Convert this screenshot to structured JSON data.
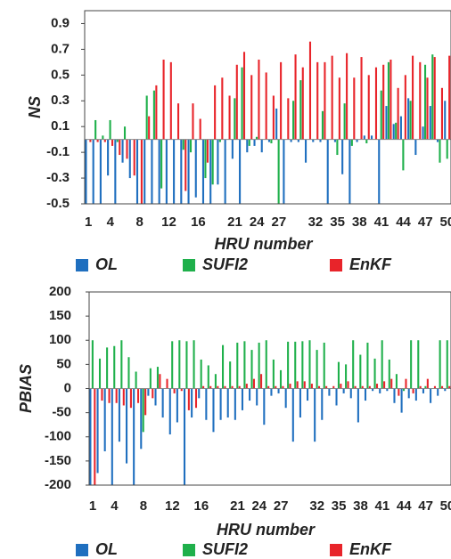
{
  "chart_data": [
    {
      "type": "bar",
      "y_label": "NS",
      "x_label": "HRU number",
      "categories": [
        "1",
        null,
        null,
        "4",
        null,
        null,
        null,
        "8",
        null,
        null,
        null,
        "12",
        null,
        null,
        null,
        "16",
        null,
        null,
        null,
        null,
        "21",
        null,
        null,
        "24",
        null,
        null,
        "27",
        null,
        null,
        null,
        null,
        "32",
        null,
        null,
        "35",
        null,
        null,
        "38",
        null,
        null,
        "41",
        null,
        null,
        "44",
        null,
        null,
        "47",
        null,
        null,
        "50"
      ],
      "ylim": [
        -0.5,
        1.0
      ],
      "yticks": [
        -0.5,
        -0.3,
        -0.1,
        0.1,
        0.3,
        0.5,
        0.7,
        0.9
      ],
      "grid": false,
      "series": [
        {
          "name": "OL",
          "color": "#1f6fbf",
          "values": [
            -0.5,
            -0.5,
            -0.5,
            -0.28,
            -0.5,
            -0.18,
            -0.3,
            -0.5,
            -0.5,
            -0.5,
            -0.5,
            -0.5,
            -0.5,
            -0.5,
            -0.5,
            -0.45,
            -0.5,
            -0.5,
            -0.35,
            -0.5,
            -0.15,
            -0.5,
            -0.1,
            -0.05,
            -0.1,
            -0.02,
            0.24,
            -0.5,
            -0.02,
            -0.02,
            -0.18,
            -0.02,
            -0.02,
            -0.5,
            -0.02,
            -0.27,
            -0.5,
            -0.02,
            0.03,
            0.03,
            -0.5,
            0.26,
            0.12,
            0.18,
            0.32,
            -0.12,
            0.1,
            0.26,
            -0.02,
            0.3
          ]
        },
        {
          "name": "SUFI2",
          "color": "#1fb04b",
          "values": [
            0,
            0.15,
            0.03,
            0.15,
            -0.02,
            0.1,
            0,
            0,
            0.34,
            0.38,
            -0.38,
            0,
            0,
            -0.08,
            -0.1,
            0,
            -0.3,
            -0.35,
            -0.02,
            0,
            0.32,
            0.56,
            -0.05,
            0.02,
            0,
            -0.03,
            -0.5,
            0,
            0.3,
            0.46,
            0,
            0,
            0.22,
            0,
            -0.12,
            0.28,
            -0.05,
            0,
            -0.03,
            0,
            0.38,
            0.6,
            0.13,
            -0.24,
            0.3,
            0,
            0.58,
            0.66,
            -0.18,
            -0.15
          ]
        },
        {
          "name": "EnKF",
          "color": "#e8242a",
          "values": [
            -0.02,
            -0.02,
            -0.02,
            -0.05,
            -0.12,
            -0.15,
            -0.28,
            -0.5,
            0.18,
            0.42,
            0.62,
            0.6,
            0.28,
            -0.4,
            0.28,
            0.16,
            -0.18,
            0.42,
            0.48,
            0.34,
            0.58,
            0.68,
            0.5,
            0.62,
            0.52,
            0.34,
            0.6,
            0.32,
            0.66,
            0.56,
            0.76,
            0.6,
            0.6,
            0.65,
            0.48,
            0.67,
            0.48,
            0.64,
            0.5,
            0.56,
            0.58,
            0.62,
            0.4,
            0.5,
            0.65,
            0.6,
            0.48,
            0.64,
            0.4,
            0.65
          ]
        }
      ]
    },
    {
      "type": "bar",
      "y_label": "PBIAS",
      "x_label": "HRU number",
      "categories": [
        "1",
        null,
        null,
        "4",
        null,
        null,
        null,
        "8",
        null,
        null,
        null,
        "12",
        null,
        null,
        null,
        "16",
        null,
        null,
        null,
        null,
        "21",
        null,
        null,
        "24",
        null,
        null,
        "27",
        null,
        null,
        null,
        null,
        "32",
        null,
        null,
        "35",
        null,
        null,
        "38",
        null,
        null,
        "41",
        null,
        null,
        "44",
        null,
        null,
        "47",
        null,
        null,
        "50"
      ],
      "ylim": [
        -200,
        200
      ],
      "yticks": [
        -200,
        -150,
        -100,
        -50,
        0,
        50,
        100,
        150,
        200
      ],
      "grid": false,
      "series": [
        {
          "name": "OL",
          "color": "#1f6fbf",
          "values": [
            -200,
            -175,
            -130,
            -200,
            -110,
            -155,
            -200,
            -125,
            -15,
            -35,
            -60,
            -95,
            -70,
            -200,
            -60,
            -20,
            -65,
            -90,
            -65,
            -60,
            -65,
            -45,
            -25,
            -35,
            -75,
            -15,
            -10,
            -40,
            -110,
            -60,
            -25,
            -110,
            -65,
            -15,
            -35,
            -10,
            -20,
            -70,
            -25,
            -5,
            -10,
            -5,
            -30,
            -50,
            -20,
            -25,
            -10,
            -30,
            -15,
            -5
          ]
        },
        {
          "name": "SUFI2",
          "color": "#1fb04b",
          "values": [
            100,
            62,
            85,
            88,
            100,
            65,
            35,
            -90,
            42,
            45,
            0,
            98,
            100,
            98,
            100,
            60,
            48,
            30,
            90,
            56,
            95,
            98,
            80,
            95,
            100,
            60,
            38,
            97,
            97,
            98,
            100,
            80,
            95,
            0,
            55,
            50,
            100,
            70,
            95,
            62,
            100,
            60,
            30,
            -5,
            100,
            100,
            5,
            0,
            100,
            100
          ]
        },
        {
          "name": "EnKF",
          "color": "#e8242a",
          "values": [
            -200,
            -25,
            -30,
            -30,
            -35,
            -40,
            -30,
            -55,
            -20,
            30,
            20,
            -10,
            -5,
            -45,
            -40,
            5,
            5,
            5,
            5,
            5,
            5,
            10,
            20,
            30,
            5,
            5,
            5,
            10,
            15,
            15,
            10,
            5,
            5,
            5,
            10,
            15,
            5,
            5,
            5,
            10,
            15,
            20,
            -15,
            20,
            -10,
            5,
            20,
            5,
            5,
            5
          ]
        }
      ]
    }
  ]
}
